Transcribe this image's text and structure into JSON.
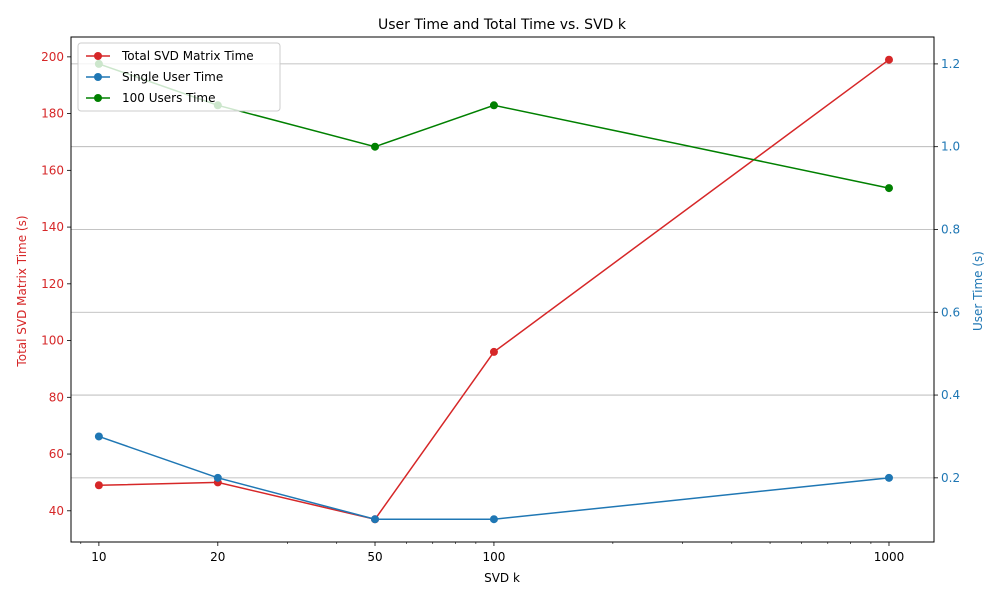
{
  "chart_data": {
    "type": "line",
    "title": "User Time and Total Time vs. SVD k",
    "xlabel": "SVD k",
    "ylabel_left": "Total SVD Matrix Time (s)",
    "ylabel_right": "User Time (s)",
    "x_scale": "log",
    "x": [
      10,
      20,
      50,
      100,
      1000
    ],
    "x_tick_labels": [
      "10",
      "20",
      "50",
      "100",
      "1000"
    ],
    "xlim": [
      8.5,
      1300
    ],
    "ylim_left": [
      29,
      207
    ],
    "ylim_right": [
      0.045,
      1.265
    ],
    "yticks_left": [
      40,
      60,
      80,
      100,
      120,
      140,
      160,
      180,
      200
    ],
    "yticks_right": [
      0.2,
      0.4,
      0.6,
      0.8,
      1.0,
      1.2
    ],
    "ytick_labels_left": [
      "40",
      "60",
      "80",
      "100",
      "120",
      "140",
      "160",
      "180",
      "200"
    ],
    "ytick_labels_right": [
      "0.2",
      "0.4",
      "0.6",
      "0.8",
      "1.0",
      "1.2"
    ],
    "grid": "horizontal on right axis",
    "legend_position": "top-left",
    "left_axis_color": "#d62728",
    "right_axis_color": "#1f77b4",
    "series": [
      {
        "name": "Total SVD Matrix Time",
        "axis": "left",
        "color": "#d62728",
        "values": [
          49,
          50,
          37,
          96,
          199
        ]
      },
      {
        "name": "Single User Time",
        "axis": "right",
        "color": "#1f77b4",
        "values": [
          0.3,
          0.2,
          0.1,
          0.1,
          0.2
        ]
      },
      {
        "name": "100 Users Time",
        "axis": "right",
        "color": "#008000",
        "values": [
          1.2,
          1.1,
          1.0,
          1.1,
          0.9
        ]
      }
    ]
  }
}
